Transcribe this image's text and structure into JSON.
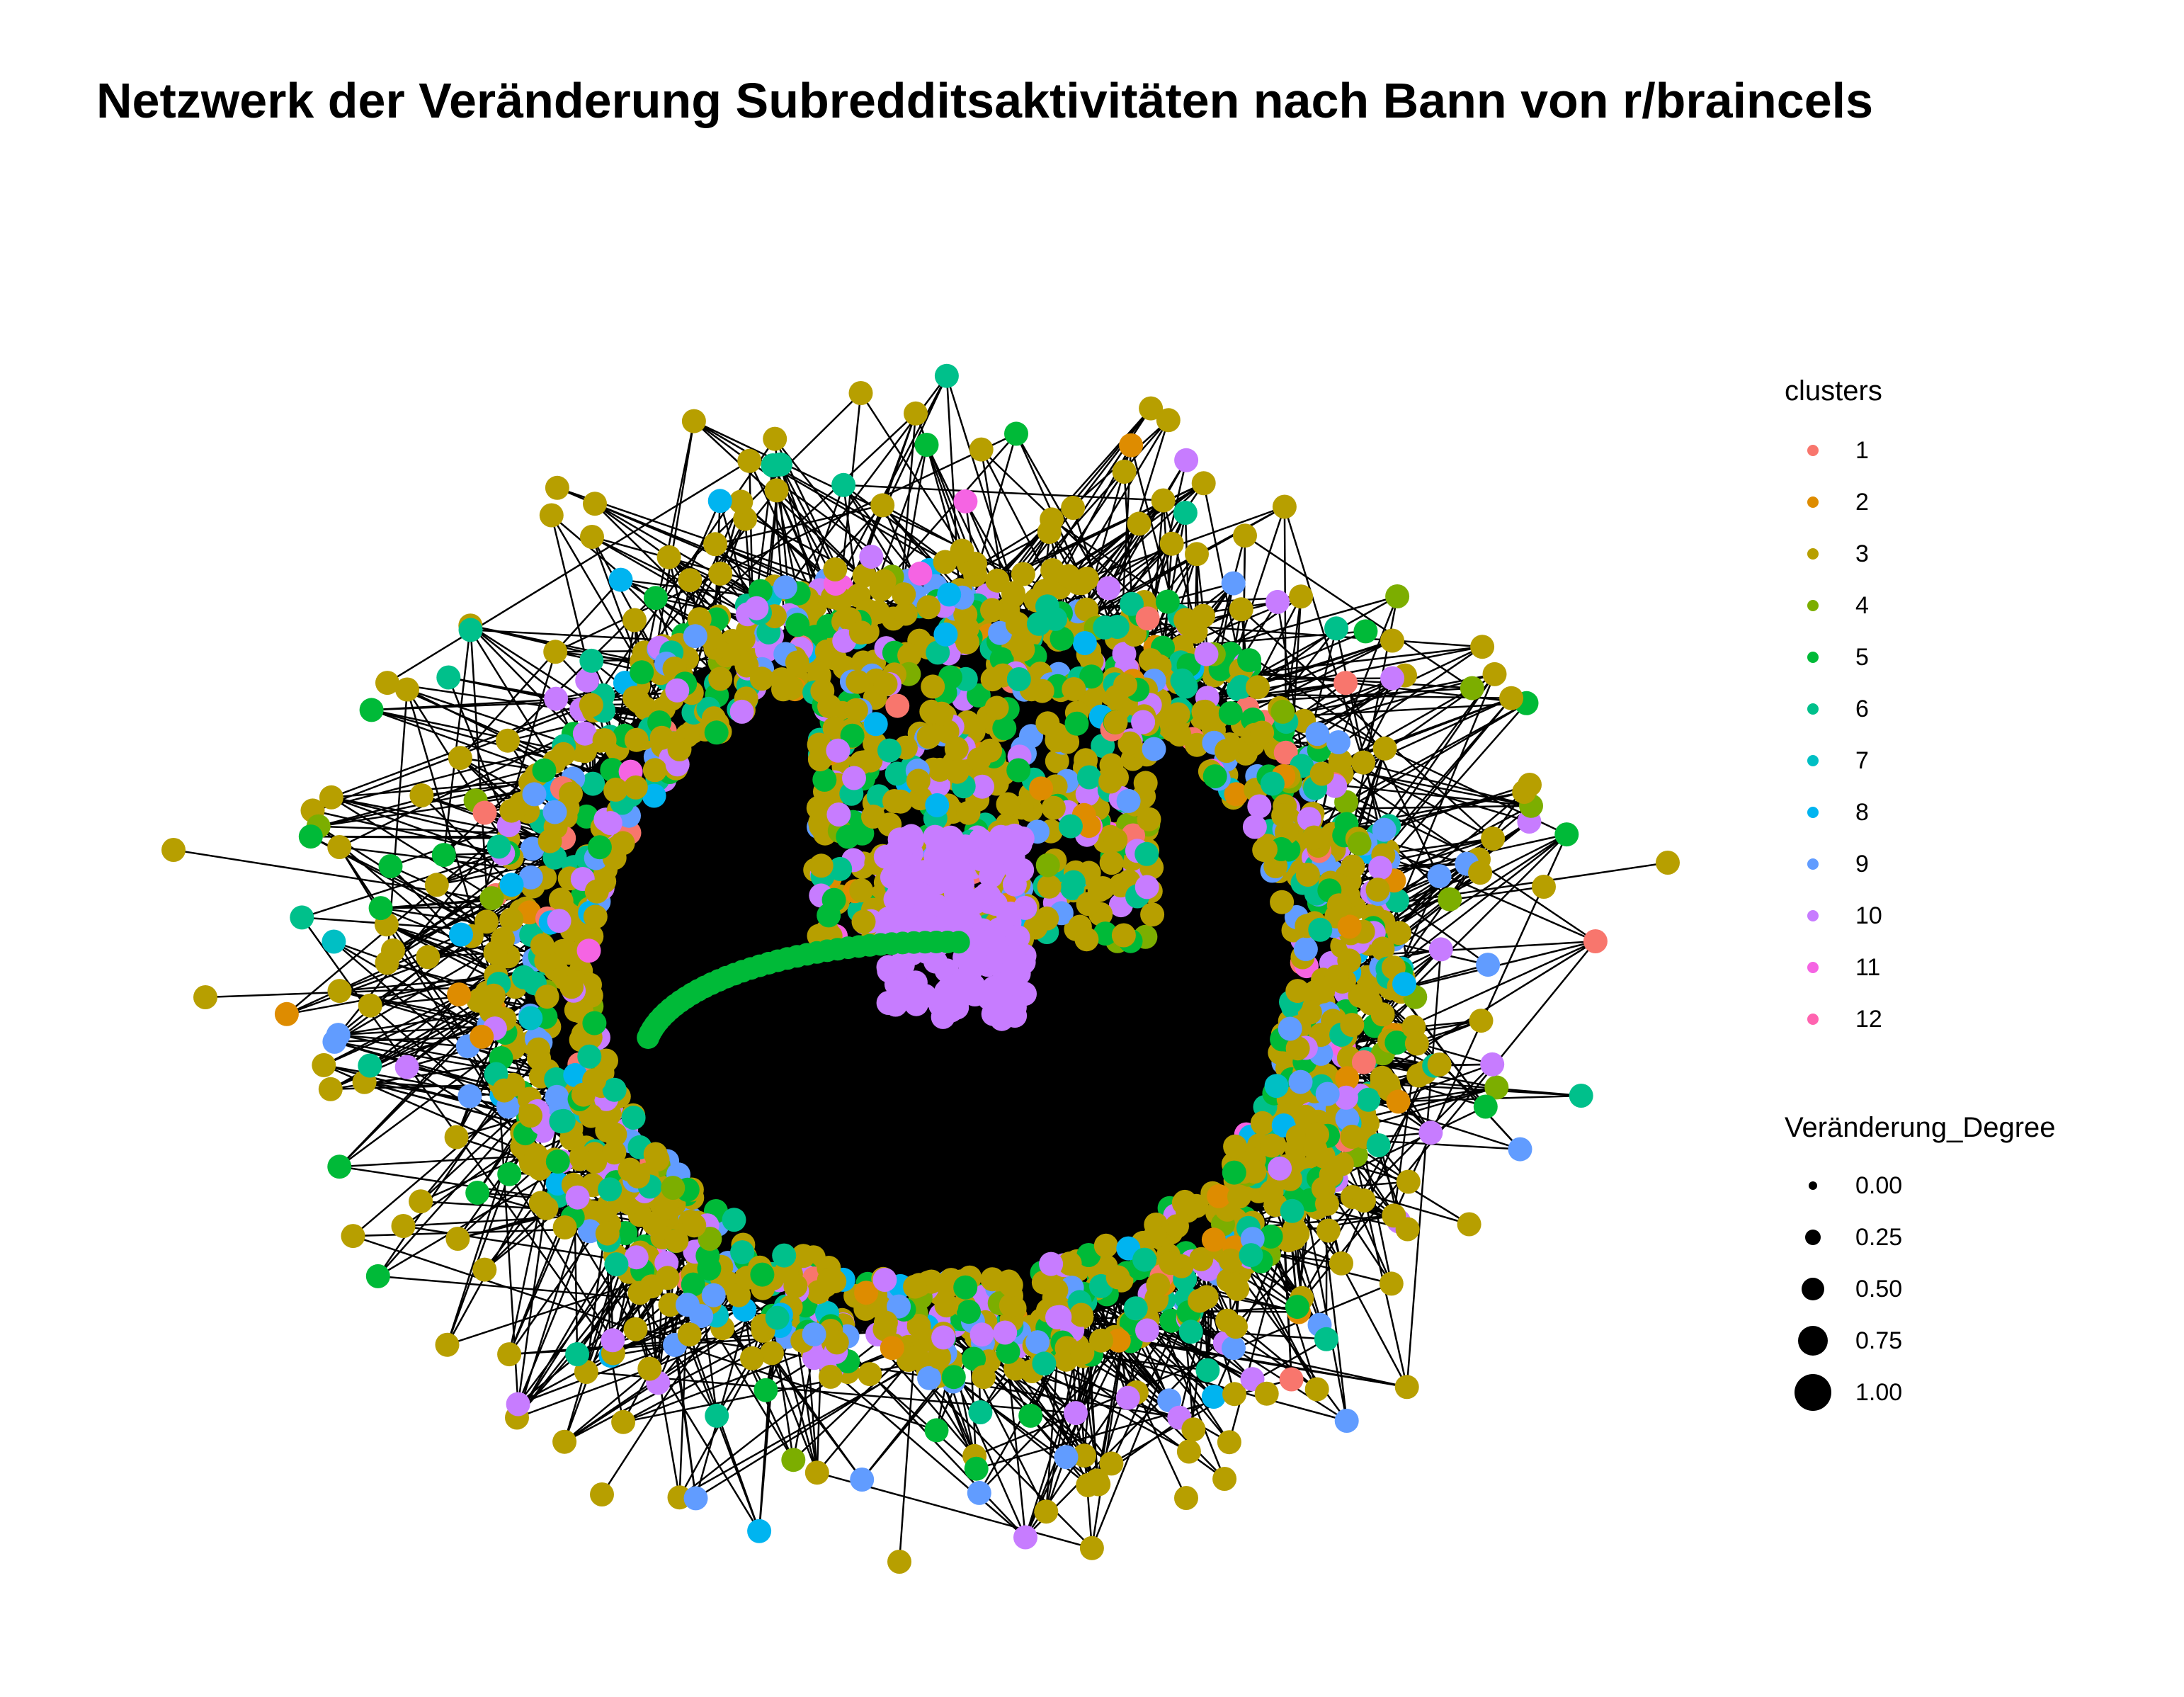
{
  "title": "Netzwerk der Veränderung Subredditsaktivitäten nach Bann von r/braincels",
  "legend_clusters": {
    "title": "clusters",
    "items": [
      {
        "label": "1",
        "color": "#F8766D"
      },
      {
        "label": "2",
        "color": "#DE8C00"
      },
      {
        "label": "3",
        "color": "#B79F00"
      },
      {
        "label": "4",
        "color": "#7CAE00"
      },
      {
        "label": "5",
        "color": "#00BA38"
      },
      {
        "label": "6",
        "color": "#00C08B"
      },
      {
        "label": "7",
        "color": "#00BFC4"
      },
      {
        "label": "8",
        "color": "#00B4F0"
      },
      {
        "label": "9",
        "color": "#619CFF"
      },
      {
        "label": "10",
        "color": "#C77CFF"
      },
      {
        "label": "11",
        "color": "#F564E3"
      },
      {
        "label": "12",
        "color": "#FF64B0"
      }
    ]
  },
  "legend_size": {
    "title": "Veränderung_Degree",
    "items": [
      {
        "label": "0.00",
        "value": 0.0
      },
      {
        "label": "0.25",
        "value": 0.25
      },
      {
        "label": "0.50",
        "value": 0.5
      },
      {
        "label": "0.75",
        "value": 0.75
      },
      {
        "label": "1.00",
        "value": 1.0
      }
    ]
  },
  "colors": {
    "edge": "#000000",
    "core_fill": "#000000",
    "background": "#ffffff"
  }
}
